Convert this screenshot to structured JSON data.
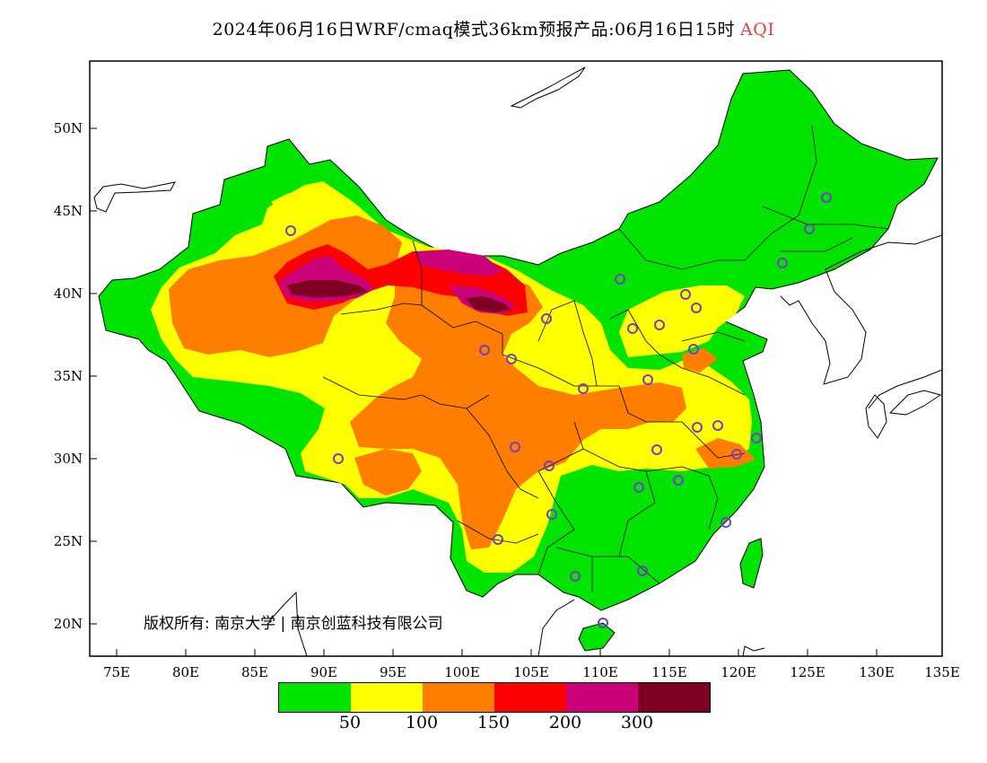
{
  "title": {
    "main": "2024年06月16日WRF/cmaq模式36km预报产品:06月16日15时",
    "variable": "AQI",
    "variable_color": "#e8403c"
  },
  "axes": {
    "lat_labels": [
      "50N",
      "45N",
      "40N",
      "35N",
      "30N",
      "25N",
      "20N"
    ],
    "lon_labels": [
      "75E",
      "80E",
      "85E",
      "90E",
      "95E",
      "100E",
      "105E",
      "110E",
      "115E",
      "120E",
      "125E",
      "130E",
      "135E"
    ]
  },
  "legend": {
    "colors": [
      "#00e400",
      "#ffff00",
      "#ff7e00",
      "#ff0000",
      "#cc0077",
      "#7e0023"
    ],
    "labels": [
      "50",
      "100",
      "150",
      "200",
      "300"
    ]
  },
  "copyright": "版权所有: 南京大学 | 南京创蓝科技有限公司",
  "icons": [
    "monitoring-station-marker"
  ]
}
